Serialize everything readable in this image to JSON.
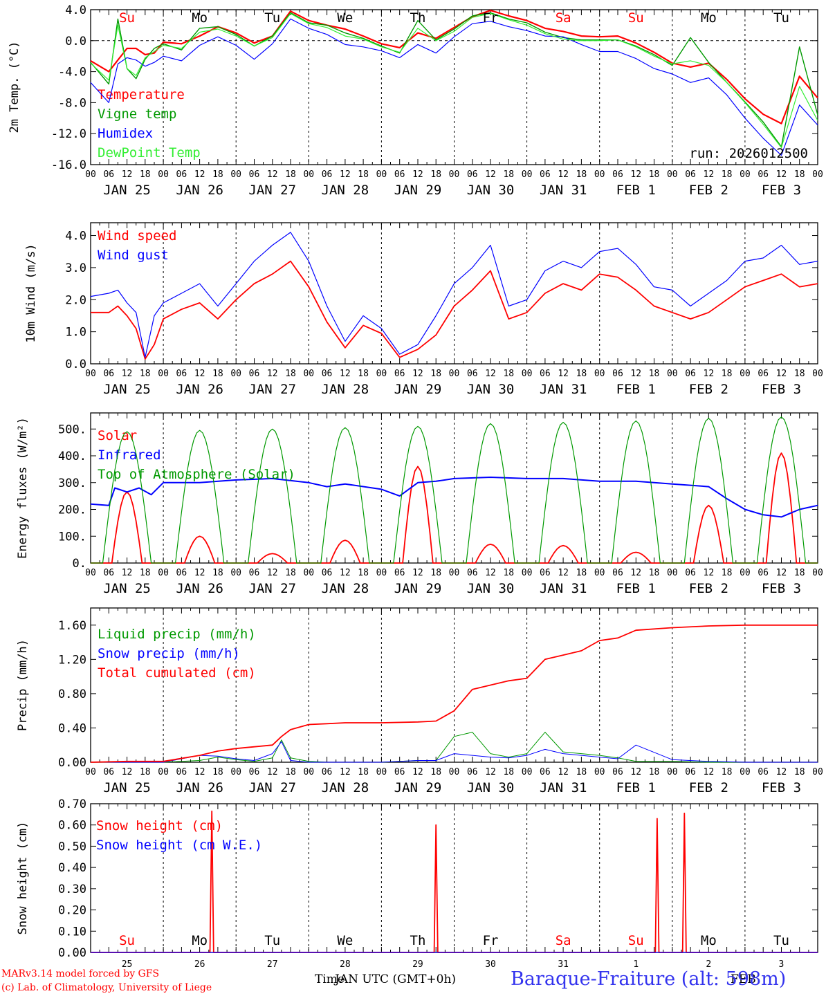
{
  "colors": {
    "red": "#ff0000",
    "green": "#009900",
    "blue": "#0000ff",
    "lightgreen": "#33ee33",
    "black": "#000000"
  },
  "days": {
    "weekdays": [
      "Su",
      "Mo",
      "Tu",
      "We",
      "Th",
      "Fr",
      "Sa",
      "Su",
      "Mo",
      "Tu"
    ],
    "weekday_colors": [
      "red",
      "black",
      "black",
      "black",
      "black",
      "black",
      "red",
      "red",
      "black",
      "black"
    ],
    "date_labels": [
      "JAN 25",
      "JAN 26",
      "JAN 27",
      "JAN 28",
      "JAN 29",
      "JAN 30",
      "JAN 31",
      "FEB  1",
      "FEB  2",
      "FEB  3"
    ],
    "day_numbers": [
      "25",
      "26",
      "27",
      "28",
      "29",
      "30",
      "31",
      "1",
      "2",
      "3"
    ],
    "hour_ticks": [
      "00",
      "06",
      "12",
      "18"
    ],
    "final_tick": "00"
  },
  "chart_data": [
    {
      "id": "temperature",
      "type": "line",
      "ylabel": "2m Temp. (°C)",
      "ylim": [
        -16,
        4
      ],
      "yticks": [
        "4.0",
        "0.0",
        "-4.0",
        "-8.0",
        "-12.0",
        "-16.0"
      ],
      "ytick_values": [
        4,
        0,
        -4,
        -8,
        -12,
        -16
      ],
      "run_label": "run: 2026012500",
      "x_hours": [
        0,
        6,
        9,
        12,
        15,
        18,
        21,
        24,
        30,
        36,
        42,
        48,
        54,
        60,
        66,
        72,
        78,
        84,
        90,
        96,
        102,
        108,
        114,
        120,
        126,
        132,
        138,
        144,
        150,
        156,
        162,
        168,
        174,
        180,
        186,
        192,
        198,
        204,
        210,
        216,
        222,
        228,
        234,
        240
      ],
      "series": [
        {
          "name": "Temperature",
          "color": "red",
          "width": 2.2,
          "values": [
            -2.6,
            -4.0,
            -2.5,
            -1.0,
            -1.0,
            -1.8,
            -1.6,
            -0.2,
            -0.4,
            0.6,
            1.8,
            1.0,
            -0.3,
            0.6,
            3.8,
            2.6,
            2.0,
            1.5,
            0.6,
            -0.4,
            -0.9,
            1.0,
            0.3,
            1.7,
            3.1,
            3.9,
            3.2,
            2.6,
            1.6,
            1.2,
            0.6,
            0.5,
            0.6,
            -0.3,
            -1.5,
            -2.9,
            -3.4,
            -2.9,
            -5.0,
            -7.5,
            -9.5,
            -10.7,
            -4.6,
            -7.4
          ]
        },
        {
          "name": "Vigne temp",
          "color": "green",
          "width": 1.4,
          "values": [
            -2.8,
            -5.6,
            2.8,
            -3.6,
            -4.9,
            -2.4,
            -1.0,
            -0.4,
            -1.2,
            1.6,
            1.8,
            0.8,
            -0.7,
            0.6,
            3.6,
            2.3,
            2.0,
            1.0,
            0.3,
            -0.7,
            -1.6,
            2.6,
            0.1,
            1.5,
            3.2,
            3.6,
            2.8,
            2.3,
            1.1,
            0.4,
            0.1,
            0.1,
            0.1,
            -0.7,
            -1.8,
            -3.2,
            0.4,
            -2.8,
            -5.4,
            -7.9,
            -10.5,
            -13.7,
            -0.8,
            -9.6
          ]
        },
        {
          "name": "Humidex",
          "color": "blue",
          "width": 1.2,
          "values": [
            -5.4,
            -8.0,
            -3.0,
            -2.2,
            -2.5,
            -3.3,
            -2.8,
            -2.0,
            -2.6,
            -0.6,
            0.5,
            -0.6,
            -2.4,
            -0.4,
            2.8,
            1.6,
            0.8,
            -0.5,
            -0.8,
            -1.3,
            -2.2,
            -0.5,
            -1.6,
            0.5,
            2.2,
            2.5,
            1.8,
            1.3,
            0.6,
            0.5,
            -0.5,
            -1.4,
            -1.4,
            -2.3,
            -3.6,
            -4.3,
            -5.4,
            -4.8,
            -7.0,
            -10.0,
            -12.6,
            -14.8,
            -8.3,
            -10.9
          ]
        },
        {
          "name": "DewPoint Temp",
          "color": "lightgreen",
          "width": 1.2,
          "values": [
            -2.9,
            -5.1,
            2.0,
            -3.6,
            -4.5,
            -2.2,
            -1.4,
            -0.6,
            -1.0,
            1.1,
            1.5,
            0.6,
            -0.7,
            0.4,
            3.5,
            2.2,
            1.7,
            0.6,
            0.2,
            -0.8,
            -1.5,
            1.6,
            0.0,
            1.2,
            3.0,
            3.5,
            2.7,
            2.0,
            0.9,
            0.2,
            0.0,
            0.0,
            0.1,
            -0.8,
            -2.0,
            -3.0,
            -2.6,
            -3.2,
            -5.4,
            -8.0,
            -10.8,
            -13.8,
            -5.9,
            -10.3
          ]
        }
      ]
    },
    {
      "id": "wind",
      "type": "line",
      "ylabel": "10m Wind (m/s)",
      "ylim": [
        0,
        4.4
      ],
      "yticks": [
        "4.0",
        "3.0",
        "2.0",
        "1.0",
        "0.0"
      ],
      "ytick_values": [
        4,
        3,
        2,
        1,
        0
      ],
      "x_hours": [
        0,
        6,
        9,
        12,
        15,
        18,
        21,
        24,
        30,
        36,
        42,
        48,
        54,
        60,
        66,
        72,
        78,
        84,
        90,
        96,
        102,
        108,
        114,
        120,
        126,
        132,
        138,
        144,
        150,
        156,
        162,
        168,
        174,
        180,
        186,
        192,
        198,
        204,
        210,
        216,
        222,
        228,
        234,
        240
      ],
      "series": [
        {
          "name": "Wind speed",
          "color": "red",
          "width": 1.8,
          "values": [
            1.6,
            1.6,
            1.8,
            1.5,
            1.1,
            0.15,
            0.6,
            1.4,
            1.7,
            1.9,
            1.4,
            2.0,
            2.5,
            2.8,
            3.2,
            2.4,
            1.3,
            0.5,
            1.2,
            0.95,
            0.2,
            0.45,
            0.9,
            1.8,
            2.3,
            2.9,
            1.4,
            1.6,
            2.2,
            2.5,
            2.3,
            2.8,
            2.7,
            2.3,
            1.8,
            1.6,
            1.4,
            1.6,
            2.0,
            2.4,
            2.6,
            2.8,
            2.4,
            2.5
          ]
        },
        {
          "name": "Wind gust",
          "color": "blue",
          "width": 1.2,
          "values": [
            2.1,
            2.2,
            2.3,
            1.9,
            1.6,
            0.2,
            1.5,
            1.9,
            2.2,
            2.5,
            1.8,
            2.5,
            3.2,
            3.7,
            4.1,
            3.2,
            1.8,
            0.7,
            1.5,
            1.1,
            0.3,
            0.6,
            1.5,
            2.5,
            3.0,
            3.7,
            1.8,
            2.0,
            2.9,
            3.2,
            3.0,
            3.5,
            3.6,
            3.1,
            2.4,
            2.3,
            1.8,
            2.2,
            2.6,
            3.2,
            3.3,
            3.7,
            3.1,
            3.2
          ]
        }
      ]
    },
    {
      "id": "energy",
      "type": "line",
      "ylabel": "Energy fluxes (W/m²)",
      "ylim": [
        0,
        560
      ],
      "yticks": [
        "500.",
        "400.",
        "300.",
        "200.",
        "100.",
        "0."
      ],
      "ytick_values": [
        500,
        400,
        300,
        200,
        100,
        0
      ],
      "series": [
        {
          "name": "Solar",
          "color": "red",
          "width": 1.8,
          "peaks_hour": [
            12,
            36,
            60,
            84,
            108,
            132,
            156,
            180,
            204,
            228
          ],
          "peaks": [
            265,
            100,
            35,
            85,
            360,
            70,
            65,
            40,
            215,
            410
          ],
          "half_width_hours": 5
        },
        {
          "name": "Infrared",
          "color": "blue",
          "width": 2.0,
          "x_hours": [
            0,
            6,
            8,
            12,
            16,
            20,
            24,
            36,
            48,
            60,
            72,
            78,
            84,
            96,
            102,
            108,
            114,
            120,
            132,
            144,
            156,
            168,
            180,
            192,
            204,
            210,
            216,
            222,
            228,
            234,
            240
          ],
          "values": [
            220,
            215,
            280,
            265,
            280,
            255,
            300,
            300,
            310,
            315,
            300,
            285,
            295,
            275,
            250,
            300,
            305,
            315,
            320,
            315,
            315,
            305,
            305,
            295,
            285,
            240,
            200,
            180,
            172,
            200,
            215
          ]
        },
        {
          "name": "Top of Atmosphere (Solar)",
          "color": "green",
          "width": 1.2,
          "peaks_hour": [
            12,
            36,
            60,
            84,
            108,
            132,
            156,
            180,
            204,
            228
          ],
          "peaks": [
            490,
            495,
            500,
            505,
            510,
            520,
            525,
            530,
            540,
            545
          ],
          "half_width_hours": 8
        }
      ]
    },
    {
      "id": "precip",
      "type": "line",
      "ylabel": "Precip (mm/h)",
      "ylim": [
        0,
        1.8
      ],
      "yticks": [
        "1.60",
        "1.20",
        "0.80",
        "0.40",
        "0.00"
      ],
      "ytick_values": [
        1.6,
        1.2,
        0.8,
        0.4,
        0
      ],
      "x_hours": [
        0,
        12,
        24,
        36,
        42,
        48,
        54,
        60,
        63,
        66,
        72,
        78,
        84,
        96,
        108,
        114,
        120,
        126,
        132,
        138,
        144,
        150,
        156,
        162,
        168,
        174,
        180,
        192,
        204,
        216,
        228,
        240
      ],
      "series": [
        {
          "name": "Liquid precip (mm/h)",
          "color": "green",
          "width": 1.0,
          "values": [
            0,
            0,
            0,
            0.02,
            0.06,
            0.03,
            0.01,
            0.05,
            0.26,
            0.05,
            0.01,
            0,
            0,
            0,
            0.02,
            0.02,
            0.3,
            0.35,
            0.1,
            0.06,
            0.1,
            0.35,
            0.12,
            0.1,
            0.08,
            0.05,
            0.01,
            0.01,
            0,
            0,
            0,
            0
          ]
        },
        {
          "name": "Snow precip (mm/h)",
          "color": "blue",
          "width": 1.0,
          "values": [
            0,
            0,
            0,
            0.08,
            0.07,
            0.04,
            0.02,
            0.1,
            0.24,
            0.02,
            0,
            0,
            0,
            0,
            0.02,
            0.02,
            0.1,
            0.08,
            0.06,
            0.05,
            0.08,
            0.15,
            0.1,
            0.08,
            0.06,
            0.04,
            0.2,
            0.03,
            0.01,
            0,
            0,
            0
          ]
        },
        {
          "name": "Total cumulated (cm)",
          "color": "red",
          "width": 1.8,
          "values": [
            0,
            0.01,
            0.01,
            0.08,
            0.13,
            0.16,
            0.18,
            0.2,
            0.3,
            0.38,
            0.44,
            0.45,
            0.46,
            0.46,
            0.47,
            0.48,
            0.6,
            0.85,
            0.9,
            0.95,
            0.98,
            1.2,
            1.25,
            1.3,
            1.42,
            1.45,
            1.54,
            1.57,
            1.59,
            1.6,
            1.6,
            1.6
          ]
        }
      ]
    },
    {
      "id": "snow",
      "type": "line",
      "ylabel": "Snow height (cm)",
      "ylim": [
        0,
        0.7
      ],
      "yticks": [
        "0.70",
        "0.60",
        "0.50",
        "0.40",
        "0.30",
        "0.20",
        "0.10",
        "0.00"
      ],
      "ytick_values": [
        0.7,
        0.6,
        0.5,
        0.4,
        0.3,
        0.2,
        0.1,
        0
      ],
      "series": [
        {
          "name": "Snow height (cm)",
          "color": "red",
          "width": 1.8,
          "spikes_hour": [
            40,
            114,
            187,
            196
          ],
          "spikes": [
            0.665,
            0.6,
            0.63,
            0.655
          ]
        },
        {
          "name": "Snow height (cm W.E.)",
          "color": "blue",
          "width": 1.2,
          "spikes_hour": [],
          "spikes": []
        }
      ]
    }
  ],
  "footer": {
    "credit1": "MARv3.14 model forced by GFS",
    "credit2": "(c) Lab. of Climatology, University of Liege",
    "time_axis": "Time",
    "time_zone": "JAN UTC (GMT+0h)",
    "feb": "FEB",
    "station": "Baraque-Fraiture (alt: 598m)"
  }
}
